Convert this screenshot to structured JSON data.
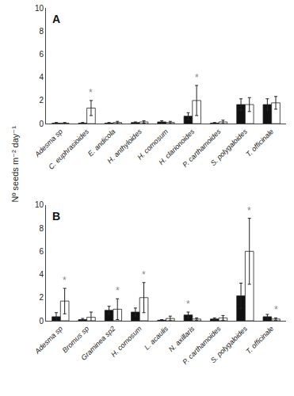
{
  "chart_data": [
    {
      "type": "bar",
      "title": "A",
      "ylabel": "Nº seeds m⁻² day⁻¹",
      "categories": [
        "Adesma sp",
        "C. euphrasioides",
        "E. andicola",
        "H. anthyloides",
        "H. comosum",
        "H. clarionoides",
        "P. carthamoides",
        "S. polygaloides",
        "T. officinale"
      ],
      "series": [
        {
          "color": "#111111",
          "values": [
            0.05,
            0.05,
            0.05,
            0.1,
            0.15,
            0.65,
            0.05,
            1.65,
            1.65
          ],
          "error": [
            0.05,
            0.05,
            0.05,
            0.05,
            0.1,
            0.3,
            0.05,
            0.5,
            0.5
          ]
        },
        {
          "color": "#ffffff",
          "values": [
            0.05,
            1.35,
            0.1,
            0.15,
            0.1,
            2.0,
            0.15,
            1.65,
            1.8
          ],
          "error": [
            0.05,
            0.65,
            0.1,
            0.1,
            0.1,
            1.3,
            0.15,
            0.6,
            0.55
          ]
        }
      ],
      "annotations": [
        {
          "text": "*",
          "category": "C. euphrasioides",
          "series": 1,
          "color": "#888888"
        },
        {
          "text": "*",
          "category": "H. clarionoides",
          "series": 1,
          "color": "#888888"
        }
      ],
      "ylim": [
        0,
        10
      ],
      "yticks": [
        0,
        2,
        4,
        6,
        8,
        10
      ],
      "grid": false
    },
    {
      "type": "bar",
      "title": "B",
      "categories": [
        "Adesma sp",
        "Bromus sp",
        "Graminea sp2",
        "H. comosum",
        "L. acaulis",
        "N. axillaris",
        "P. carthamoides",
        "S. polygaloides",
        "T. officinale"
      ],
      "series": [
        {
          "color": "#111111",
          "values": [
            0.35,
            0.1,
            0.9,
            0.75,
            0.05,
            0.5,
            0.15,
            2.15,
            0.35
          ],
          "error": [
            0.35,
            0.1,
            0.35,
            0.35,
            0.05,
            0.25,
            0.1,
            1.1,
            0.2
          ]
        },
        {
          "color": "#ffffff",
          "values": [
            1.7,
            0.3,
            1.0,
            2.0,
            0.2,
            0.15,
            0.25,
            6.0,
            0.15
          ],
          "error": [
            1.1,
            0.45,
            0.9,
            1.3,
            0.2,
            0.1,
            0.2,
            2.85,
            0.1
          ]
        }
      ],
      "annotations": [
        {
          "text": "*",
          "category": "Adesma sp",
          "series": 1,
          "color": "#888888"
        },
        {
          "text": "*",
          "category": "Graminea sp2",
          "series": 1,
          "color": "#888888"
        },
        {
          "text": "*",
          "category": "H. comosum",
          "series": 1,
          "color": "#888888"
        },
        {
          "text": "*",
          "category": "N. axillaris",
          "series": 0,
          "color": "#888888"
        },
        {
          "text": "*",
          "category": "S. polygaloides",
          "series": 1,
          "color": "#888888"
        },
        {
          "text": "*",
          "category": "T. officinale",
          "series": 1,
          "color": "#888888"
        }
      ],
      "ylim": [
        0,
        10
      ],
      "yticks": [
        0,
        2,
        4,
        6,
        8,
        10
      ],
      "grid": false
    }
  ]
}
